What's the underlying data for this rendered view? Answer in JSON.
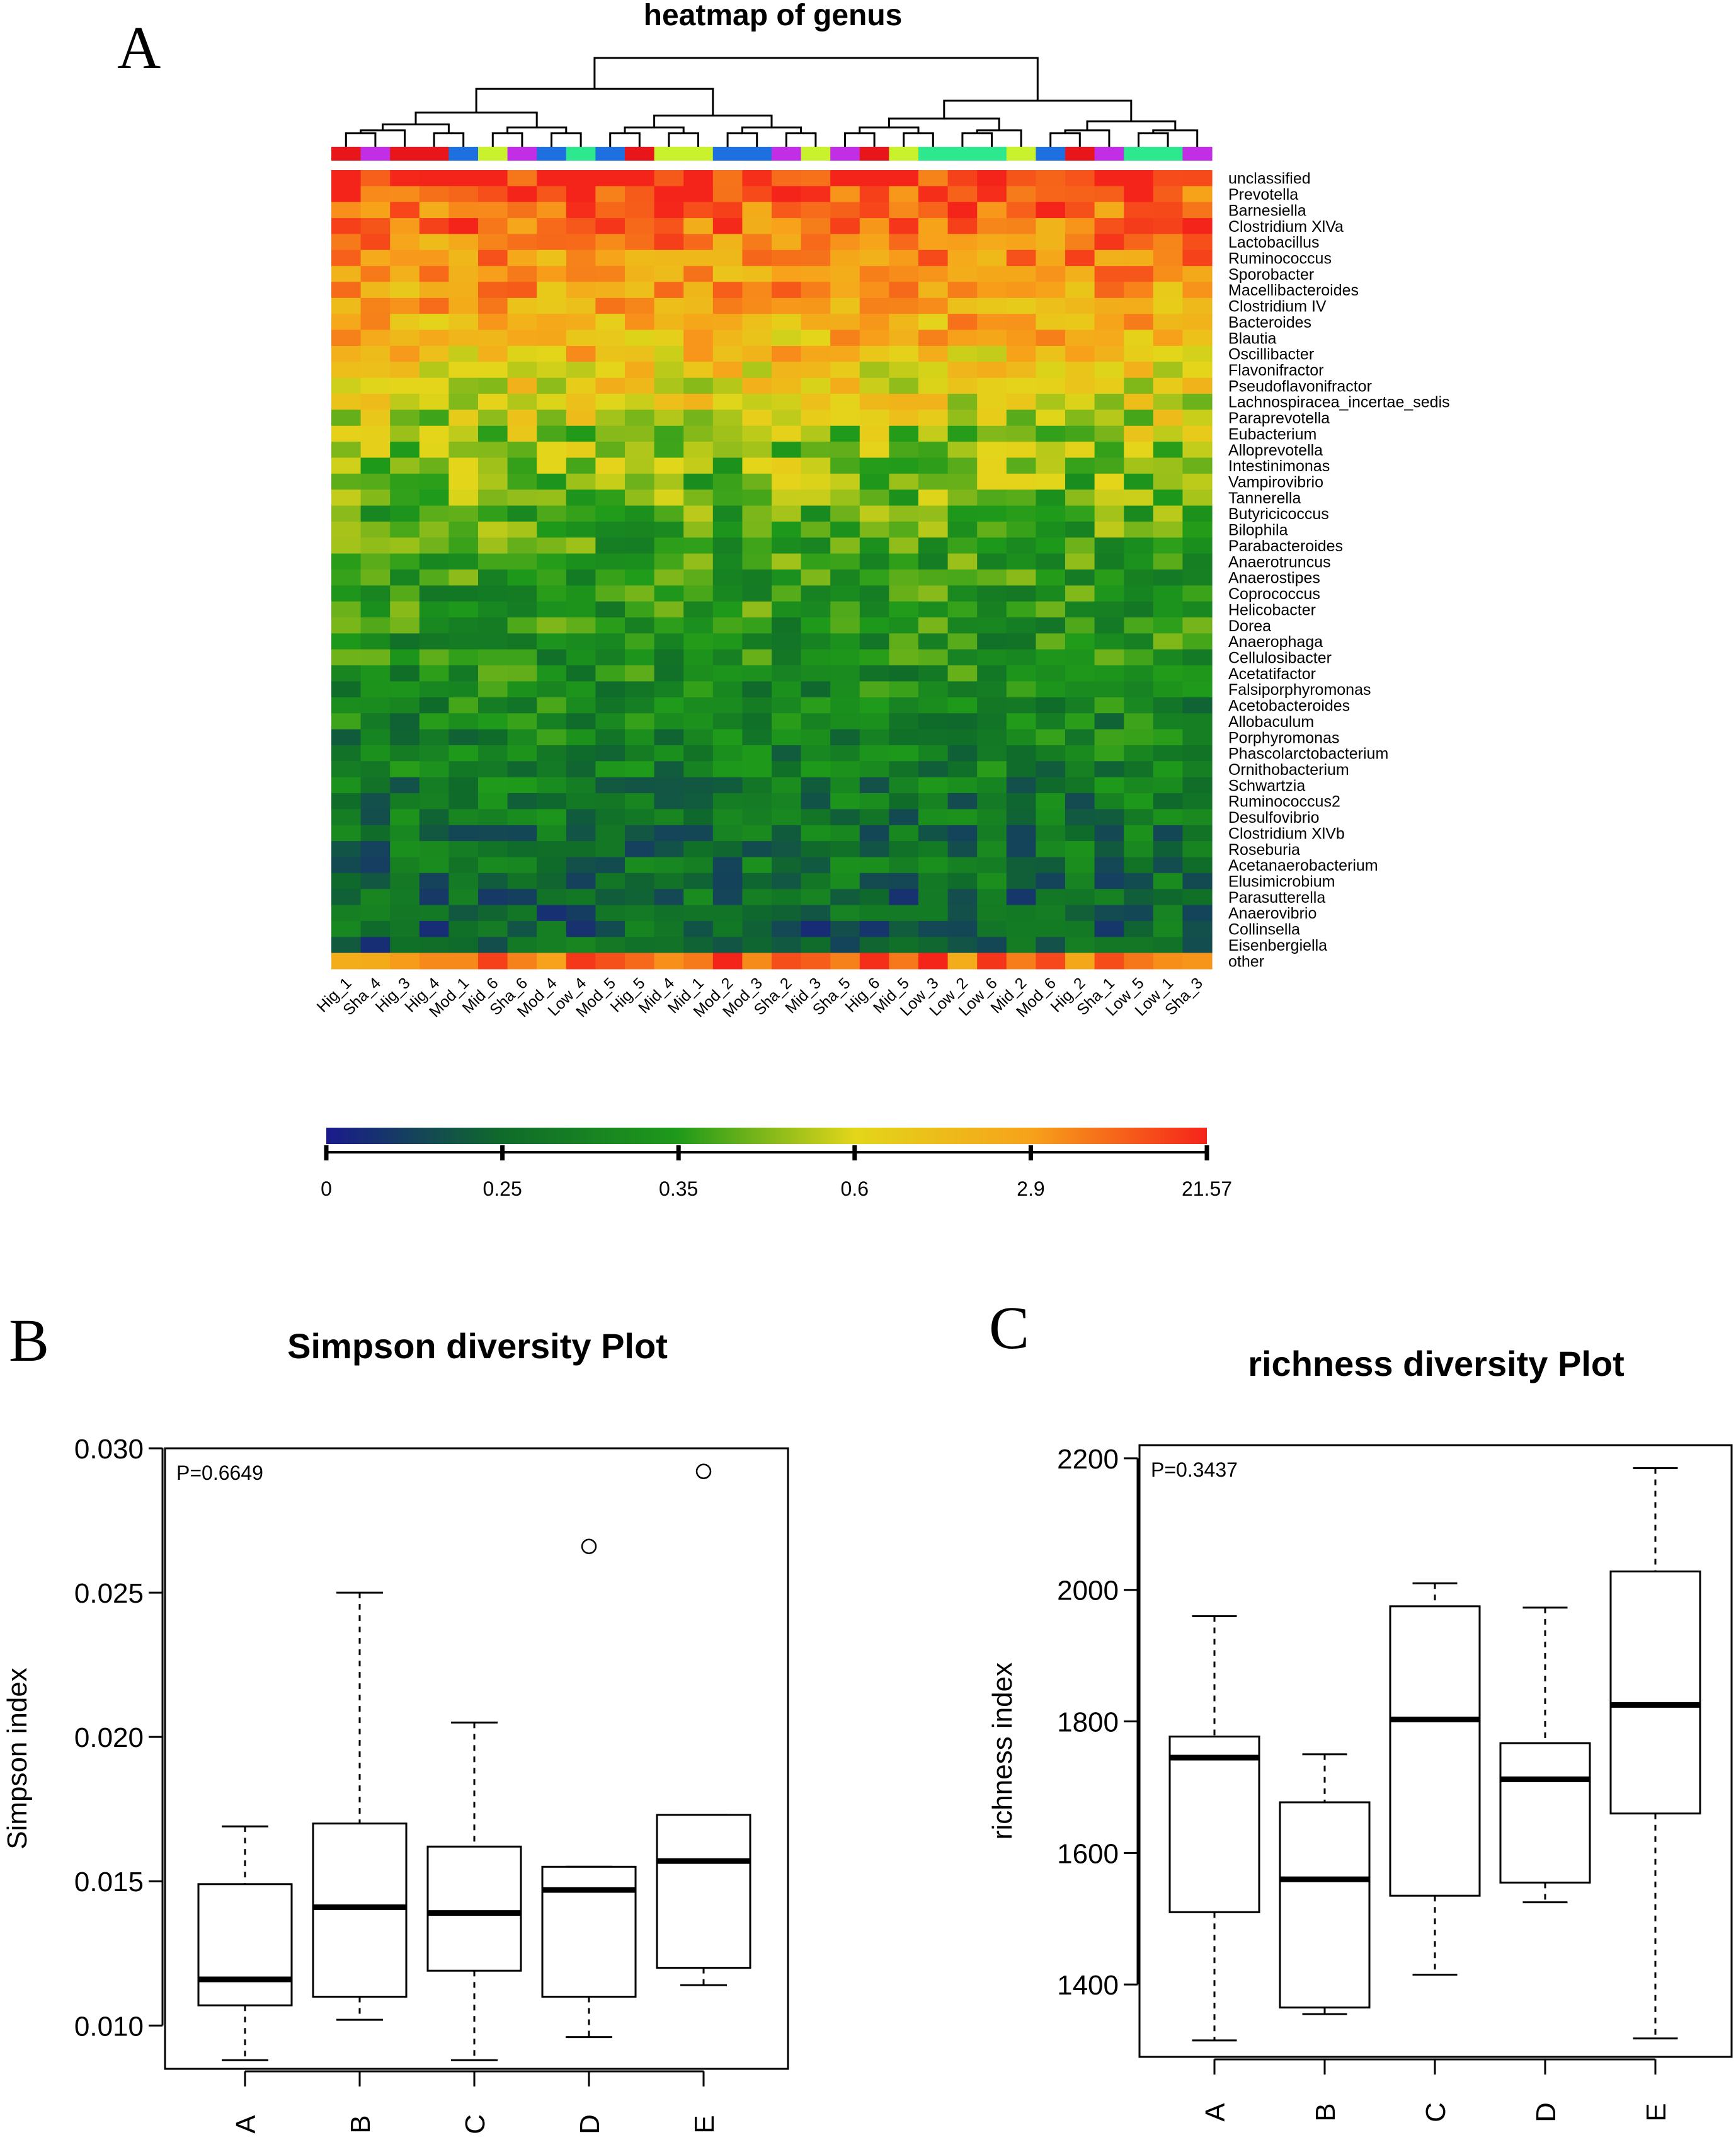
{
  "panel_labels": {
    "a": "A",
    "b": "B",
    "c": "C"
  },
  "chart_data": [
    {
      "type": "heatmap",
      "title": "heatmap of genus",
      "samples": [
        "Hig_1",
        "Sha_4",
        "Hig_3",
        "Hig_4",
        "Mod_1",
        "Mid_6",
        "Sha_6",
        "Mod_4",
        "Low_4",
        "Mod_5",
        "Hig_5",
        "Mid_4",
        "Mid_1",
        "Mod_2",
        "Mod_3",
        "Sha_2",
        "Mid_3",
        "Sha_5",
        "Hig_6",
        "Mid_5",
        "Low_3",
        "Low_2",
        "Low_6",
        "Mid_2",
        "Mod_6",
        "Hig_2",
        "Sha_1",
        "Low_5",
        "Low_1",
        "Sha_3"
      ],
      "genera": [
        "unclassified",
        "Prevotella",
        "Barnesiella",
        "Clostridium XlVa",
        "Lactobacillus",
        "Ruminococcus",
        "Sporobacter",
        "Macellibacteroides",
        "Clostridium IV",
        "Bacteroides",
        "Blautia",
        "Oscillibacter",
        "Flavonifractor",
        "Pseudoflavonifractor",
        "Lachnospiracea_incertae_sedis",
        "Paraprevotella",
        "Eubacterium",
        "Alloprevotella",
        "Intestinimonas",
        "Vampirovibrio",
        "Tannerella",
        "Butyricicoccus",
        "Bilophila",
        "Parabacteroides",
        "Anaerotruncus",
        "Anaerostipes",
        "Coprococcus",
        "Helicobacter",
        "Dorea",
        "Anaerophaga",
        "Cellulosibacter",
        "Acetatifactor",
        "Falsiporphyromonas",
        "Acetobacteroides",
        "Allobaculum",
        "Porphyromonas",
        "Phascolarctobacterium",
        "Ornithobacterium",
        "Schwartzia",
        "Ruminococcus2",
        "Desulfovibrio",
        "Clostridium XlVb",
        "Roseburia",
        "Acetanaerobacterium",
        "Elusimicrobium",
        "Parasutterella",
        "Anaerovibrio",
        "Collinsella",
        "Eisenbergiella",
        "other"
      ],
      "group_colors": {
        "Hig": "#e8151b",
        "Sha": "#c12ee6",
        "Mod": "#1e6fe0",
        "Mid": "#c9f22c",
        "Low": "#2ee88d"
      },
      "column_groups": [
        "Hig",
        "Sha",
        "Hig",
        "Hig",
        "Mod",
        "Mid",
        "Sha",
        "Mod",
        "Low",
        "Mod",
        "Hig",
        "Mid",
        "Mid",
        "Mod",
        "Mod",
        "Sha",
        "Mid",
        "Sha",
        "Hig",
        "Mid",
        "Low",
        "Low",
        "Low",
        "Mid",
        "Mod",
        "Hig",
        "Sha",
        "Low",
        "Low",
        "Sha"
      ],
      "row_levels": [
        0.96,
        0.93,
        0.9,
        0.87,
        0.84,
        0.82,
        0.8,
        0.78,
        0.76,
        0.74,
        0.72,
        0.7,
        0.67,
        0.63,
        0.6,
        0.57,
        0.54,
        0.52,
        0.5,
        0.48,
        0.46,
        0.44,
        0.43,
        0.42,
        0.41,
        0.4,
        0.39,
        0.38,
        0.37,
        0.36,
        0.35,
        0.34,
        0.33,
        0.32,
        0.31,
        0.3,
        0.29,
        0.28,
        0.27,
        0.26,
        0.25,
        0.24,
        0.23,
        0.22,
        0.21,
        0.2,
        0.19,
        0.18,
        0.17,
        0.9
      ],
      "colorbar": {
        "ticks": [
          "0",
          "0.25",
          "0.35",
          "0.6",
          "2.9",
          "21.57"
        ],
        "colors": [
          "#1a1a8c",
          "#0f6b2a",
          "#1f9a1a",
          "#e3d61a",
          "#f7a21a",
          "#f5241a"
        ]
      }
    },
    {
      "type": "box",
      "title": "Simpson diversity Plot",
      "ylabel": "Simpson index",
      "annotation": "P=0.6649",
      "ylim": [
        0.0085,
        0.03
      ],
      "yticks": [
        "0.010",
        "0.015",
        "0.020",
        "0.025",
        "0.030"
      ],
      "categories": [
        "A",
        "B",
        "C",
        "D",
        "E"
      ],
      "boxes": [
        {
          "min": 0.0088,
          "q1": 0.0107,
          "median": 0.0116,
          "q3": 0.0149,
          "max": 0.0169,
          "outliers": []
        },
        {
          "min": 0.0102,
          "q1": 0.011,
          "median": 0.0141,
          "q3": 0.017,
          "max": 0.025,
          "outliers": []
        },
        {
          "min": 0.0088,
          "q1": 0.0119,
          "median": 0.0139,
          "q3": 0.0162,
          "max": 0.0205,
          "outliers": []
        },
        {
          "min": 0.0096,
          "q1": 0.011,
          "median": 0.0147,
          "q3": 0.0155,
          "max": 0.0155,
          "outliers": [
            0.0266
          ]
        },
        {
          "min": 0.0114,
          "q1": 0.012,
          "median": 0.0157,
          "q3": 0.0173,
          "max": 0.0173,
          "outliers": [
            0.0292
          ]
        }
      ]
    },
    {
      "type": "box",
      "title": "richness diversity Plot",
      "ylabel": "richness index",
      "annotation": "P=0.3437",
      "ylim": [
        1290,
        2220
      ],
      "yticks": [
        "1400",
        "1600",
        "1800",
        "2000",
        "2200"
      ],
      "categories": [
        "A",
        "B",
        "C",
        "D",
        "E"
      ],
      "boxes": [
        {
          "min": 1315,
          "q1": 1510,
          "median": 1745,
          "q3": 1777,
          "max": 1960,
          "outliers": []
        },
        {
          "min": 1355,
          "q1": 1365,
          "median": 1560,
          "q3": 1677,
          "max": 1750,
          "outliers": []
        },
        {
          "min": 1415,
          "q1": 1535,
          "median": 1803,
          "q3": 1975,
          "max": 2010,
          "outliers": []
        },
        {
          "min": 1525,
          "q1": 1555,
          "median": 1712,
          "q3": 1767,
          "max": 1973,
          "outliers": []
        },
        {
          "min": 1318,
          "q1": 1660,
          "median": 1825,
          "q3": 2028,
          "max": 2185,
          "outliers": []
        }
      ]
    }
  ]
}
